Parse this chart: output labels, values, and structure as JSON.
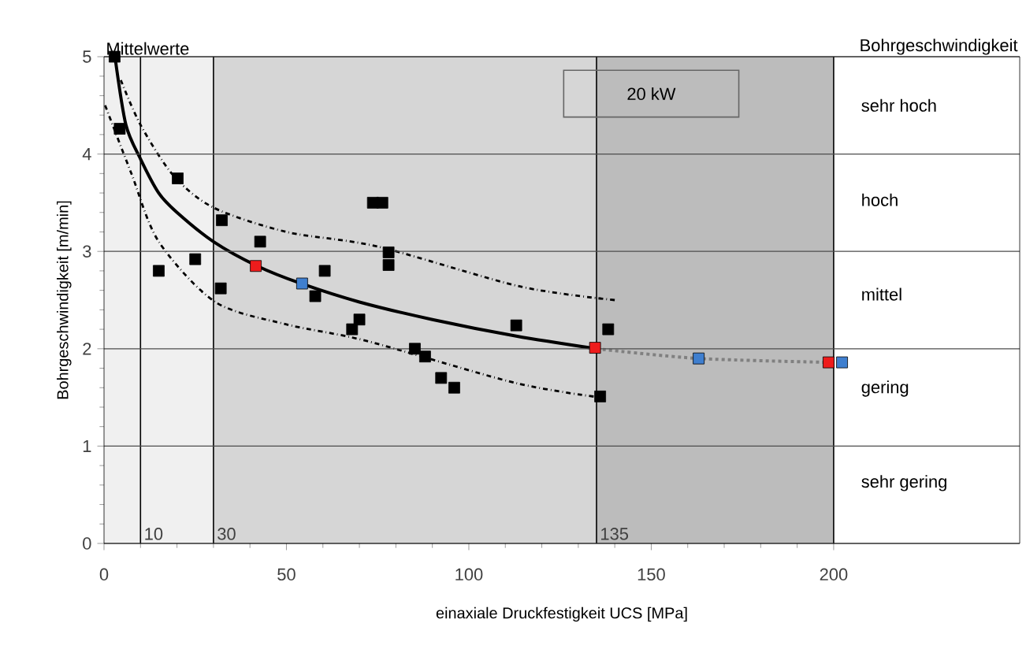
{
  "chart_data": {
    "type": "scatter",
    "title": "Mittelwerte",
    "xlabel": "einaxiale Druckfestigkeit UCS [MPa]",
    "ylabel": "Bohrgeschwindigkeit [m/min]",
    "annotations": [
      "20 kW",
      "sehr hoch",
      "hoch",
      "mittel",
      "gering",
      "sehr gering",
      "Bohrgeschwindigkeit"
    ],
    "xlim": [
      0,
      251
    ],
    "ylim": [
      0,
      5
    ],
    "xticks": [
      0,
      50,
      100,
      150,
      200
    ],
    "yticks": [
      0,
      1,
      2,
      3,
      4,
      5
    ],
    "grid": "y",
    "bands": [
      {
        "axis": "x",
        "from": 0,
        "to": 200,
        "color": "#f0f0f0"
      },
      {
        "axis": "x",
        "from": 30,
        "to": 135,
        "color": "#d6d6d6"
      },
      {
        "axis": "x",
        "from": 135,
        "to": 200,
        "color": "#bcbcbc"
      }
    ],
    "ref_lines": [
      {
        "axis": "x",
        "value": 10,
        "label": "10"
      },
      {
        "axis": "x",
        "value": 30,
        "label": "30"
      },
      {
        "axis": "x",
        "value": 135,
        "label": "135"
      },
      {
        "axis": "x",
        "value": 200
      }
    ],
    "series": [
      {
        "type": "line",
        "color": "#000000",
        "line_style": "solid",
        "marker": "none",
        "x": [
          3,
          6,
          10,
          15,
          20,
          30,
          42,
          54,
          70,
          90,
          113,
          135
        ],
        "values": [
          5,
          4.3,
          3.95,
          3.6,
          3.4,
          3.1,
          2.85,
          2.67,
          2.48,
          2.3,
          2.13,
          2.0
        ]
      },
      {
        "type": "line",
        "color": "#000000",
        "line_style": "dashed",
        "marker": "none",
        "x": [
          4.6,
          10,
          19,
          30,
          50,
          75,
          114,
          140
        ],
        "values": [
          4.76,
          4.3,
          3.78,
          3.45,
          3.2,
          3.05,
          2.64,
          2.5
        ]
      },
      {
        "type": "line",
        "color": "#000000",
        "line_style": "dashed",
        "marker": "none",
        "x": [
          0.3,
          7.5,
          15,
          30.5,
          50,
          72,
          112.6,
          136
        ],
        "values": [
          4.5,
          3.8,
          3.1,
          2.48,
          2.25,
          2.08,
          1.65,
          1.5
        ]
      },
      {
        "type": "line",
        "color": "#808080",
        "line_style": "dotted",
        "marker": "none",
        "x": [
          135,
          163,
          199
        ],
        "values": [
          2.0,
          1.9,
          1.86
        ]
      },
      {
        "color": "#000000",
        "marker": "square",
        "x": [
          2.9,
          4.3,
          20.2,
          32.3,
          42.8,
          25,
          15,
          32,
          60.5,
          57.9,
          73.7,
          76.3,
          78,
          78,
          70,
          68,
          85.2,
          88,
          92.4,
          96,
          113,
          138.2,
          136
        ],
        "values": [
          5.0,
          4.26,
          3.75,
          3.32,
          3.1,
          2.92,
          2.8,
          2.62,
          2.8,
          2.54,
          3.5,
          3.5,
          2.99,
          2.86,
          2.3,
          2.2,
          2.0,
          1.92,
          1.7,
          1.6,
          2.24,
          2.2,
          1.51
        ]
      },
      {
        "color": "#ee1c1c",
        "marker": "square",
        "x": [
          41.6,
          134.6,
          198.6
        ],
        "values": [
          2.85,
          2.01,
          1.86
        ]
      },
      {
        "color": "#3f7fcf",
        "marker": "square",
        "x": [
          54.3,
          163,
          202.3
        ],
        "values": [
          2.67,
          1.9,
          1.86
        ]
      }
    ]
  }
}
